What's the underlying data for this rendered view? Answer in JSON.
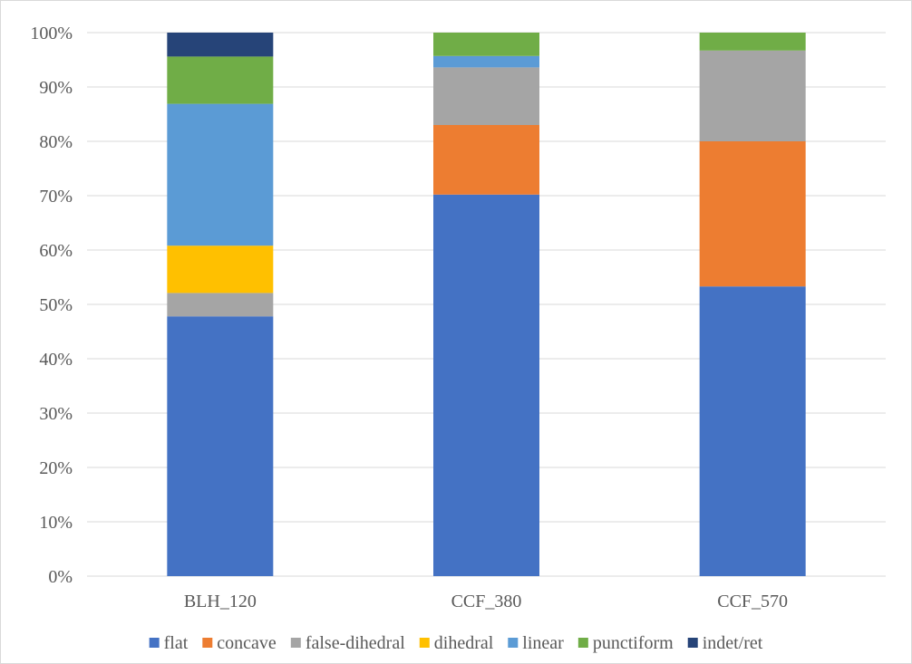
{
  "chart_data": {
    "type": "bar",
    "stacked": true,
    "percent": true,
    "categories": [
      "BLH_120",
      "CCF_380",
      "CCF_570"
    ],
    "series": [
      {
        "name": "flat",
        "color": "#4472C4",
        "values": [
          47.8,
          70.2,
          53.3
        ]
      },
      {
        "name": "concave",
        "color": "#ED7D31",
        "values": [
          0.0,
          12.8,
          26.7
        ]
      },
      {
        "name": "false-dihedral",
        "color": "#A5A5A5",
        "values": [
          4.3,
          10.6,
          16.7
        ]
      },
      {
        "name": "dihedral",
        "color": "#FFC000",
        "values": [
          8.7,
          0.0,
          0.0
        ]
      },
      {
        "name": "linear",
        "color": "#5B9BD5",
        "values": [
          26.1,
          2.1,
          0.0
        ]
      },
      {
        "name": "punctiform",
        "color": "#70AD47",
        "values": [
          8.7,
          4.3,
          3.3
        ]
      },
      {
        "name": "indet/ret",
        "color": "#264478",
        "values": [
          4.4,
          0.0,
          0.0
        ]
      }
    ],
    "ylim": [
      0,
      100
    ],
    "yticks": [
      "0%",
      "10%",
      "20%",
      "30%",
      "40%",
      "50%",
      "60%",
      "70%",
      "80%",
      "90%",
      "100%"
    ],
    "grid": true,
    "legend": "bottom"
  }
}
